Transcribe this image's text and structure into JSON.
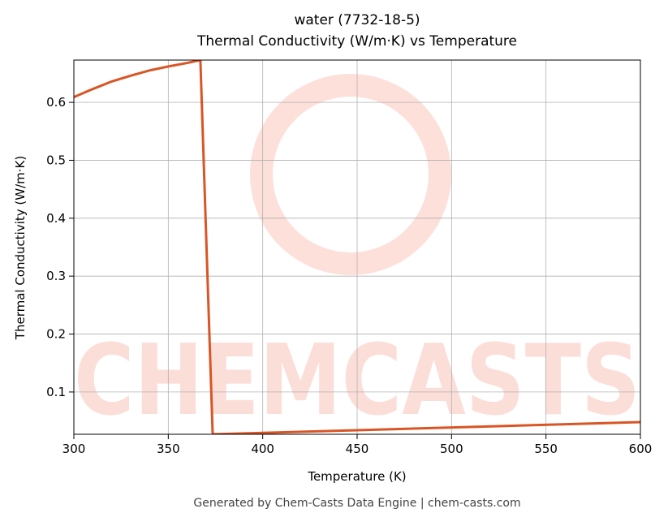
{
  "chart_data": {
    "type": "line",
    "title": "water (7732-18-5)",
    "subtitle": "Thermal Conductivity (W/m·K) vs Temperature",
    "x_label": "Temperature (K)",
    "y_label": "Thermal Conductivity (W/m·K)",
    "footer": "Generated by Chem-Casts Data Engine | chem-casts.com",
    "watermark": "CHEMCASTS",
    "x": [
      300,
      310,
      320,
      330,
      340,
      350,
      360,
      367,
      373.5,
      450,
      525,
      600
    ],
    "series": [
      {
        "name": "Thermal Conductivity",
        "color": "#d95525",
        "values": [
          0.609,
          0.623,
          0.636,
          0.646,
          0.655,
          0.662,
          0.668,
          0.673,
          0.027,
          0.034,
          0.041,
          0.048
        ]
      }
    ],
    "xlim": [
      300,
      600
    ],
    "ylim": [
      0.027,
      0.673
    ],
    "xticks": [
      300,
      350,
      400,
      450,
      500,
      550,
      600
    ],
    "yticks": [
      0.1,
      0.2,
      0.3,
      0.4,
      0.5,
      0.6
    ],
    "grid": true
  }
}
